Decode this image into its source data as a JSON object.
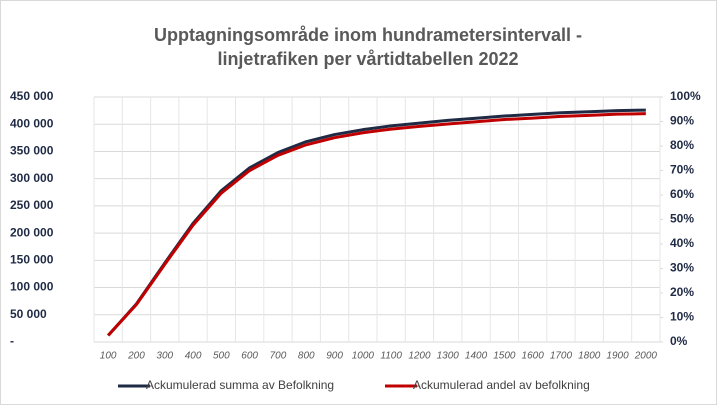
{
  "chart_data": {
    "type": "line",
    "title": "Upptagningsområde inom hundrametersintervall -",
    "subtitle": "linjetrafiken per vårtidtabellen 2022",
    "categories": [
      "100",
      "200",
      "300",
      "400",
      "500",
      "600",
      "700",
      "800",
      "900",
      "1000",
      "1100",
      "1200",
      "1300",
      "1400",
      "1500",
      "1600",
      "1700",
      "1800",
      "1900",
      "2000"
    ],
    "series": [
      {
        "name": "Ackumulerad summa av Befolkning",
        "color": "#1f2a44",
        "values": [
          12000,
          70000,
          145000,
          218000,
          278000,
          320000,
          348000,
          368000,
          381000,
          390000,
          397000,
          402000,
          407000,
          411000,
          415000,
          418000,
          421000,
          423000,
          425000,
          426000
        ]
      },
      {
        "name": "Ackumulerad andel av befolkning",
        "color": "#c00000",
        "axis": "y2",
        "values": [
          2.7,
          15.3,
          31.7,
          47.7,
          60.8,
          70.0,
          76.2,
          80.5,
          83.4,
          85.4,
          86.9,
          88.0,
          89.0,
          89.9,
          90.8,
          91.4,
          92.1,
          92.5,
          93.0,
          93.2
        ]
      }
    ],
    "ylim": [
      0,
      450000
    ],
    "yticks": [
      {
        "value": 0,
        "label": "-"
      },
      {
        "value": 50000,
        "label": "50 000"
      },
      {
        "value": 100000,
        "label": "100 000"
      },
      {
        "value": 150000,
        "label": "150 000"
      },
      {
        "value": 200000,
        "label": "200 000"
      },
      {
        "value": 250000,
        "label": "250 000"
      },
      {
        "value": 300000,
        "label": "300 000"
      },
      {
        "value": 350000,
        "label": "350 000"
      },
      {
        "value": 400000,
        "label": "400 000"
      },
      {
        "value": 450000,
        "label": "450 000"
      }
    ],
    "y2lim": [
      0,
      100
    ],
    "y2ticks": [
      {
        "value": 0,
        "label": "0%"
      },
      {
        "value": 10,
        "label": "10%"
      },
      {
        "value": 20,
        "label": "20%"
      },
      {
        "value": 30,
        "label": "30%"
      },
      {
        "value": 40,
        "label": "40%"
      },
      {
        "value": 50,
        "label": "50%"
      },
      {
        "value": 60,
        "label": "60%"
      },
      {
        "value": 70,
        "label": "70%"
      },
      {
        "value": 80,
        "label": "80%"
      },
      {
        "value": 90,
        "label": "90%"
      },
      {
        "value": 100,
        "label": "100%"
      }
    ],
    "grid": true,
    "legend": "bottom"
  }
}
